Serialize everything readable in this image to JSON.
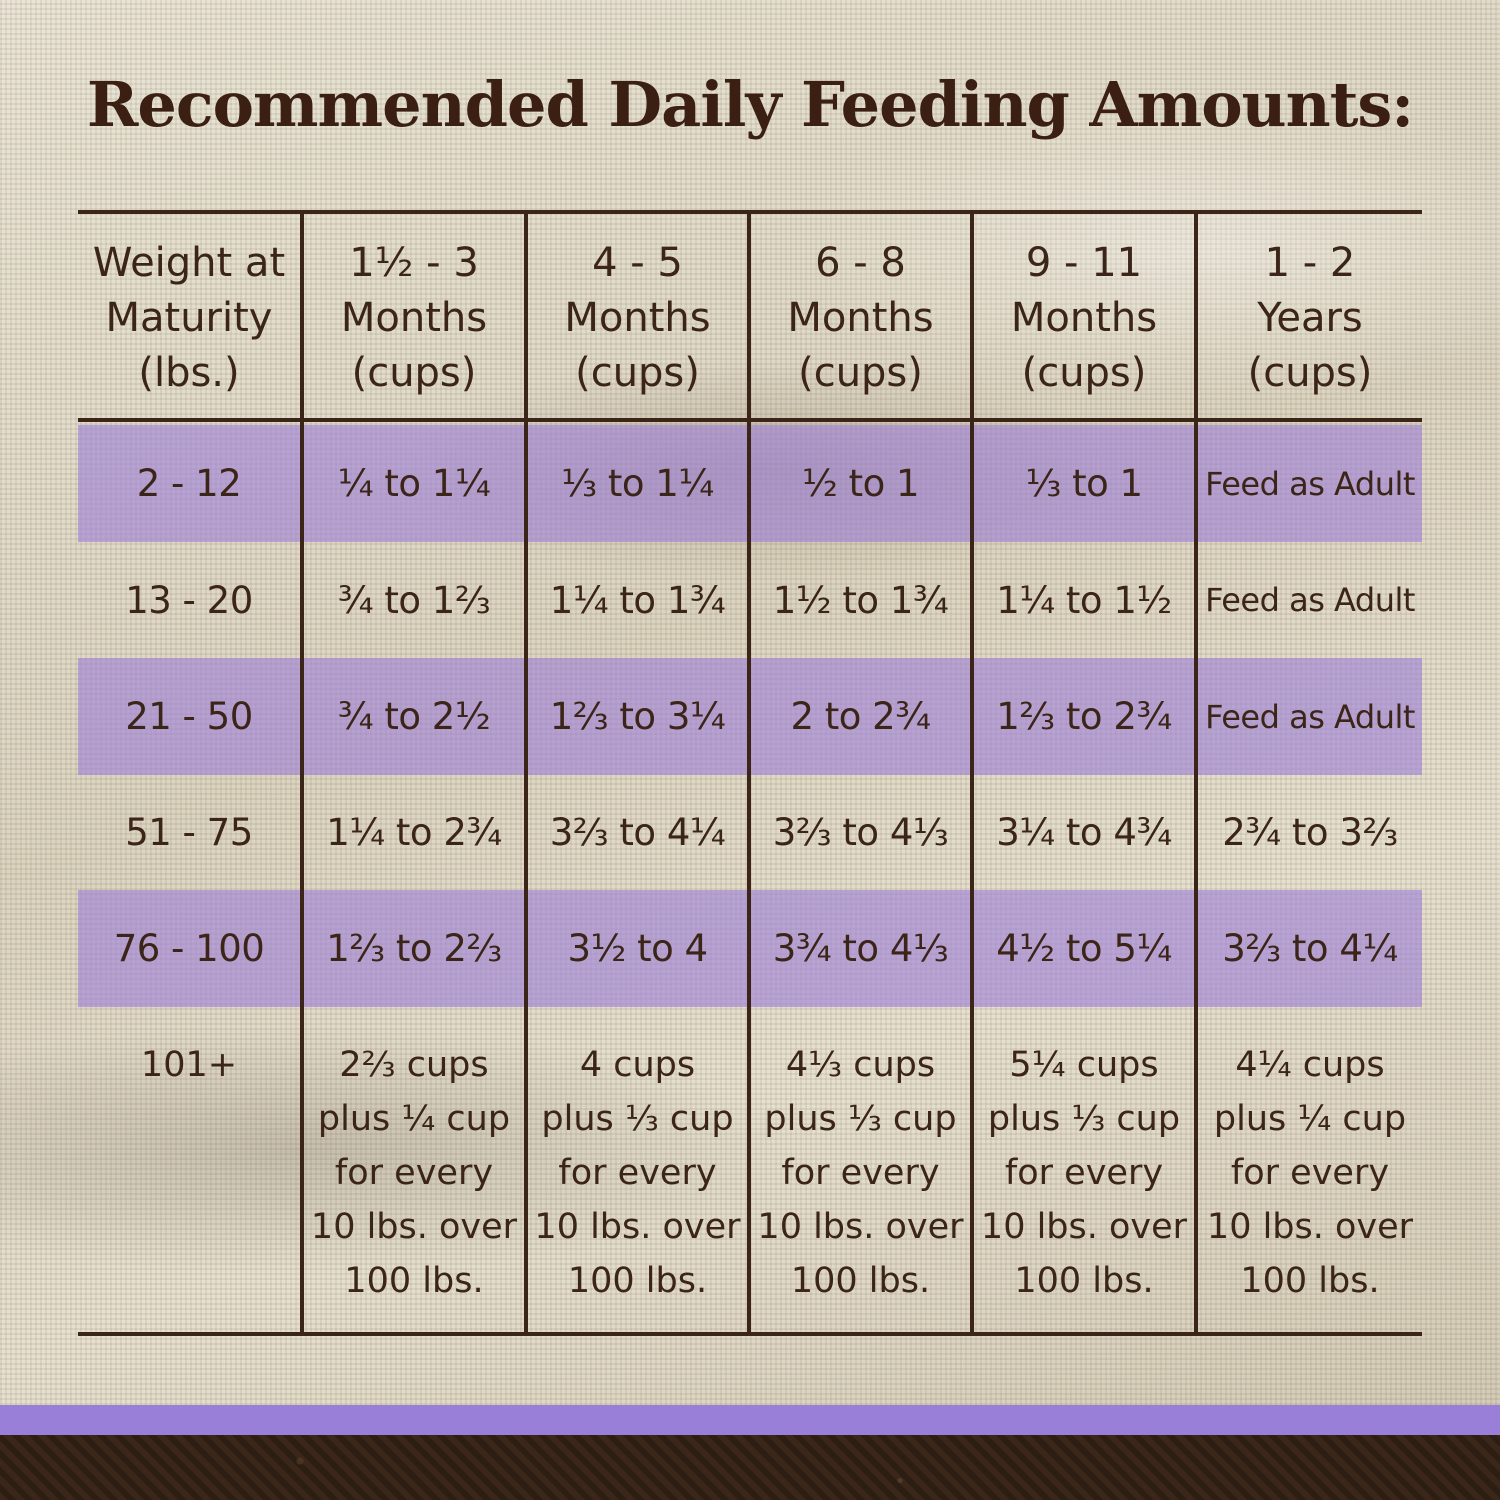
{
  "title": "Recommended Daily Feeding Amounts:",
  "table": {
    "headers": [
      "Weight at\nMaturity\n(lbs.)",
      "1½ - 3\nMonths\n(cups)",
      "4 - 5\nMonths\n(cups)",
      "6 - 8\nMonths\n(cups)",
      "9 - 11\nMonths\n(cups)",
      "1 - 2\nYears\n(cups)"
    ],
    "rows": [
      [
        "2 - 12",
        "¼ to 1¼",
        "⅓ to 1¼",
        "½ to 1",
        "⅓ to 1",
        "Feed as Adult"
      ],
      [
        "13 - 20",
        "¾ to 1⅔",
        "1¼ to 1¾",
        "1½ to 1¾",
        "1¼ to 1½",
        "Feed as Adult"
      ],
      [
        "21 - 50",
        "¾ to 2½",
        "1⅔ to 3¼",
        "2 to 2¾",
        "1⅔ to 2¾",
        "Feed as Adult"
      ],
      [
        "51 - 75",
        "1¼ to 2¾",
        "3⅔ to 4¼",
        "3⅔ to 4⅓",
        "3¼ to 4¾",
        "2¾ to 3⅔"
      ],
      [
        "76 - 100",
        "1⅔ to 2⅔",
        "3½ to 4",
        "3¾ to 4⅓",
        "4½ to 5¼",
        "3⅔ to 4¼"
      ],
      [
        "101+",
        "2⅔ cups\nplus ¼ cup\nfor every\n10 lbs. over\n100 lbs.",
        "4 cups\nplus ⅓ cup\nfor every\n10 lbs. over\n100 lbs.",
        "4⅓ cups\nplus ⅓ cup\nfor every\n10 lbs. over\n100 lbs.",
        "5¼ cups\nplus ⅓ cup\nfor every\n10 lbs. over\n100 lbs.",
        "4¼ cups\nplus ¼ cup\nfor every\n10 lbs. over\n100 lbs."
      ]
    ]
  },
  "colors": {
    "text": "#3b2418",
    "band": "#9c80d6",
    "strip": "#9a7fd9",
    "soil": "#2d1e13"
  }
}
